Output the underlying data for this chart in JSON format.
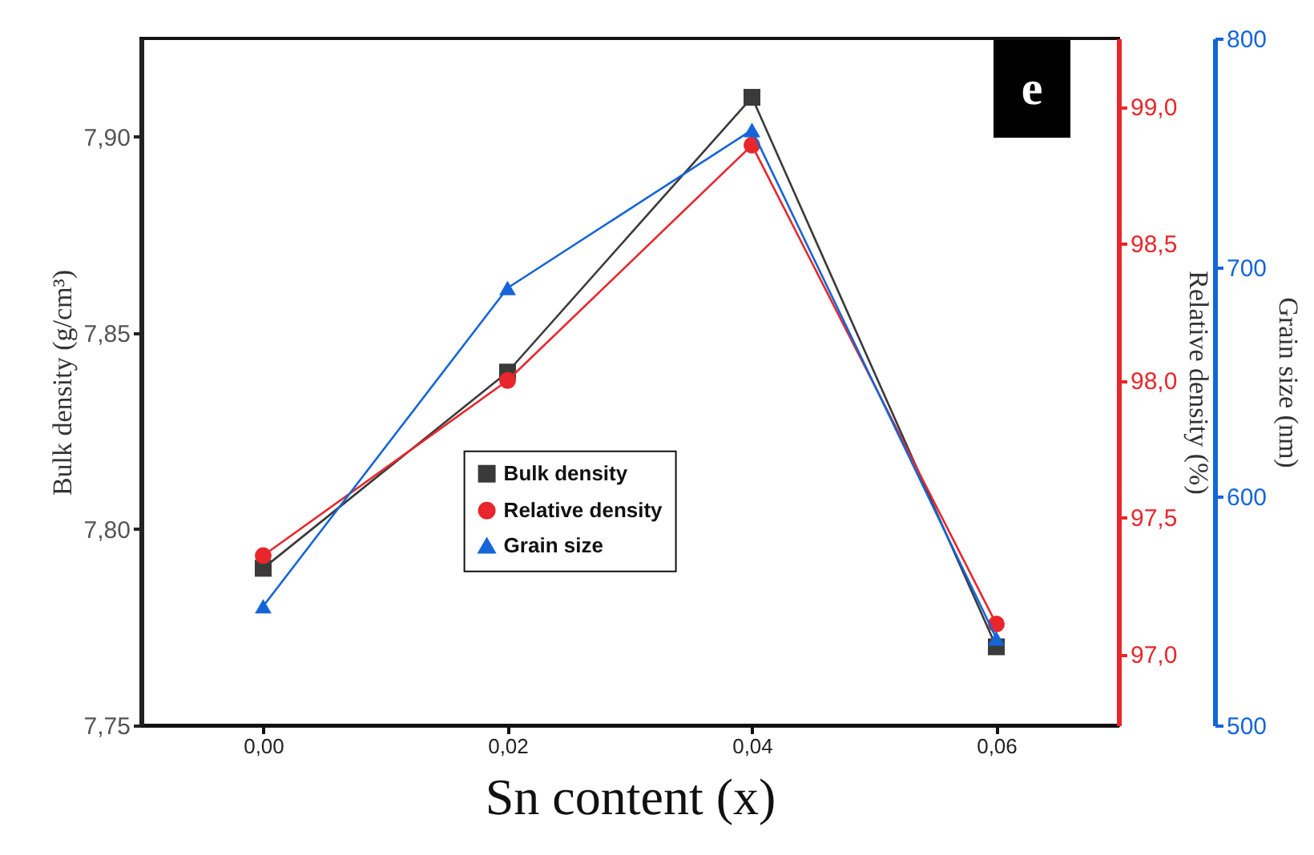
{
  "chart_data": {
    "type": "line",
    "xlabel": "Sn content (x)",
    "ylabel": "Bulk density (g/cm³)",
    "y2label": "Relative density (%)",
    "y3label": "Grain size (nm)",
    "annotations": [
      "e"
    ],
    "x": [
      0,
      0.02,
      0.04,
      0.06
    ],
    "xlim": [
      -0.01,
      0.07
    ],
    "xticks": [
      {
        "value": 0,
        "label": "0,00"
      },
      {
        "value": 0.02,
        "label": "0,02"
      },
      {
        "value": 0.04,
        "label": "0,04"
      },
      {
        "value": 0.06,
        "label": "0,06"
      }
    ],
    "ylim": [
      7.75,
      7.925
    ],
    "yticks": [
      {
        "value": 7.75,
        "label": "7,75"
      },
      {
        "value": 7.8,
        "label": "7,80"
      },
      {
        "value": 7.85,
        "label": "7,85"
      },
      {
        "value": 7.9,
        "label": "7,90"
      }
    ],
    "y2lim": [
      96.74,
      99.25
    ],
    "y2ticks": [
      {
        "value": 97,
        "label": "97,0"
      },
      {
        "value": 97.5,
        "label": "97,5"
      },
      {
        "value": 98,
        "label": "98,0"
      },
      {
        "value": 98.5,
        "label": "98,5"
      },
      {
        "value": 99,
        "label": "99,0"
      }
    ],
    "y3lim": [
      500,
      800
    ],
    "y3ticks": [
      {
        "value": 500,
        "label": "500"
      },
      {
        "value": 600,
        "label": "600"
      },
      {
        "value": 700,
        "label": "700"
      },
      {
        "value": 800,
        "label": "800"
      }
    ],
    "legend": "bottom",
    "series": [
      {
        "name": "Bulk density",
        "color": "#3a3a3a",
        "marker": "square",
        "values": [
          7.79,
          7.84,
          7.91,
          7.77
        ]
      },
      {
        "name": "Relative density",
        "color": "#e8262b",
        "marker": "circle",
        "axis": "y2",
        "values": [
          97.36,
          98.0,
          98.86,
          97.11
        ]
      },
      {
        "name": "Grain size",
        "color": "#1565d8",
        "marker": "triangle",
        "axis": "y3",
        "values": [
          552,
          691,
          760,
          538
        ]
      }
    ]
  }
}
